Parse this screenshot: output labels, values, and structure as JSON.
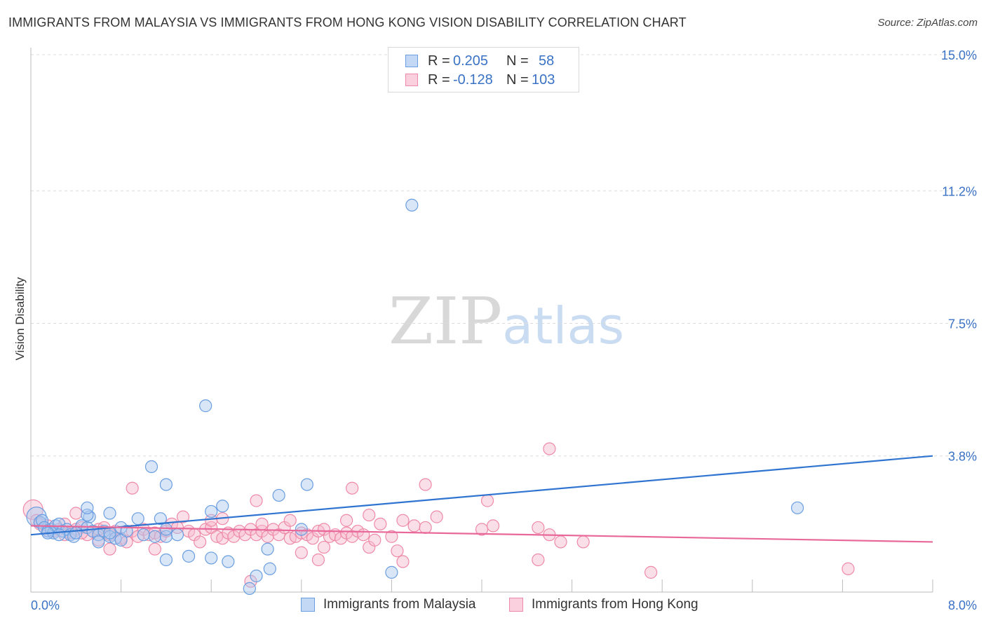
{
  "title": "IMMIGRANTS FROM MALAYSIA VS IMMIGRANTS FROM HONG KONG VISION DISABILITY CORRELATION CHART",
  "source": "Source: ZipAtlas.com",
  "watermark": {
    "zip": "ZIP",
    "atlas": "atlas"
  },
  "legend": {
    "series1": {
      "r_label": "R =",
      "r_value": "0.205",
      "n_label": "N =",
      "n_value": "58"
    },
    "series2": {
      "r_label": "R =",
      "r_value": "-0.128",
      "n_label": "N =",
      "n_value": "103"
    }
  },
  "bottom_legend": {
    "series1": "Immigrants from Malaysia",
    "series2": "Immigrants from Hong Kong"
  },
  "colors": {
    "blue_fill": "#a9c8f0",
    "blue_stroke": "#6a9ee0",
    "blue_line": "#2f74d0",
    "pink_fill": "#f7b8cc",
    "pink_stroke": "#ee8aa8",
    "pink_line": "#e8689a",
    "tick_text": "#3a72c4"
  },
  "chart_data": {
    "type": "scatter",
    "title": "IMMIGRANTS FROM MALAYSIA VS IMMIGRANTS FROM HONG KONG VISION DISABILITY CORRELATION CHART",
    "xlabel": "",
    "ylabel": "Vision Disability",
    "xlim": [
      0,
      8.0
    ],
    "ylim": [
      0,
      15.0
    ],
    "y_ticks": [
      {
        "value": 3.8,
        "label": "3.8%"
      },
      {
        "value": 7.5,
        "label": "7.5%"
      },
      {
        "value": 11.2,
        "label": "11.2%"
      },
      {
        "value": 15.0,
        "label": "15.0%"
      }
    ],
    "x_ticks": [
      {
        "value": 0.0,
        "label": "0.0%"
      },
      {
        "value": 8.0,
        "label": "8.0%"
      }
    ],
    "series": [
      {
        "name": "Immigrants from Malaysia",
        "color": "#a9c8f0",
        "trend": {
          "x": [
            0,
            8.0
          ],
          "y": [
            1.6,
            3.8
          ]
        },
        "points": [
          [
            0.05,
            2.1
          ],
          [
            0.08,
            1.95
          ],
          [
            0.1,
            2.0
          ],
          [
            0.12,
            1.8
          ],
          [
            0.15,
            1.7
          ],
          [
            0.18,
            1.75
          ],
          [
            0.2,
            1.65
          ],
          [
            0.22,
            1.85
          ],
          [
            0.25,
            1.9
          ],
          [
            0.28,
            1.7
          ],
          [
            0.32,
            1.75
          ],
          [
            0.35,
            1.6
          ],
          [
            0.38,
            1.55
          ],
          [
            0.45,
            1.85
          ],
          [
            0.5,
            1.8
          ],
          [
            0.55,
            1.7
          ],
          [
            0.6,
            1.6
          ],
          [
            0.65,
            1.7
          ],
          [
            0.7,
            1.55
          ],
          [
            0.75,
            1.5
          ],
          [
            0.8,
            1.8
          ],
          [
            0.85,
            1.7
          ],
          [
            0.15,
            1.65
          ],
          [
            0.25,
            1.6
          ],
          [
            0.4,
            1.65
          ],
          [
            0.52,
            2.1
          ],
          [
            0.6,
            1.4
          ],
          [
            0.7,
            1.65
          ],
          [
            0.8,
            1.45
          ],
          [
            1.0,
            1.6
          ],
          [
            1.1,
            1.55
          ],
          [
            1.2,
            1.55
          ],
          [
            1.3,
            1.6
          ],
          [
            0.5,
            2.15
          ],
          [
            0.7,
            2.2
          ],
          [
            0.95,
            2.05
          ],
          [
            1.15,
            2.05
          ],
          [
            1.6,
            2.25
          ],
          [
            1.7,
            2.4
          ],
          [
            2.4,
            1.75
          ],
          [
            0.5,
            2.35
          ],
          [
            1.07,
            3.5
          ],
          [
            1.2,
            3.0
          ],
          [
            1.55,
            5.2
          ],
          [
            2.2,
            2.7
          ],
          [
            2.45,
            3.0
          ],
          [
            3.38,
            10.8
          ],
          [
            1.2,
            0.9
          ],
          [
            1.4,
            1.0
          ],
          [
            1.6,
            0.95
          ],
          [
            1.75,
            0.85
          ],
          [
            2.1,
            1.2
          ],
          [
            2.12,
            0.65
          ],
          [
            2.0,
            0.45
          ],
          [
            1.94,
            0.1
          ],
          [
            3.2,
            0.55
          ],
          [
            6.8,
            2.35
          ],
          [
            1.2,
            1.75
          ]
        ]
      },
      {
        "name": "Immigrants from Hong Kong",
        "color": "#f7b8cc",
        "trend": {
          "x": [
            0,
            8.0
          ],
          "y": [
            1.85,
            1.4
          ]
        },
        "points": [
          [
            0.02,
            2.3
          ],
          [
            0.05,
            2.0
          ],
          [
            0.08,
            1.9
          ],
          [
            0.12,
            1.8
          ],
          [
            0.15,
            1.85
          ],
          [
            0.2,
            1.7
          ],
          [
            0.25,
            1.75
          ],
          [
            0.3,
            1.9
          ],
          [
            0.35,
            1.65
          ],
          [
            0.4,
            1.75
          ],
          [
            0.45,
            1.8
          ],
          [
            0.5,
            1.6
          ],
          [
            0.55,
            1.7
          ],
          [
            0.6,
            1.75
          ],
          [
            0.65,
            1.8
          ],
          [
            0.7,
            1.6
          ],
          [
            0.75,
            1.7
          ],
          [
            0.8,
            1.5
          ],
          [
            0.85,
            1.4
          ],
          [
            0.9,
            1.7
          ],
          [
            0.95,
            1.55
          ],
          [
            1.0,
            1.75
          ],
          [
            1.05,
            1.6
          ],
          [
            1.1,
            1.65
          ],
          [
            1.15,
            1.55
          ],
          [
            1.2,
            1.7
          ],
          [
            1.25,
            1.9
          ],
          [
            1.3,
            1.8
          ],
          [
            1.35,
            2.1
          ],
          [
            1.4,
            1.7
          ],
          [
            1.45,
            1.6
          ],
          [
            1.5,
            1.4
          ],
          [
            1.55,
            1.75
          ],
          [
            1.6,
            1.8
          ],
          [
            1.65,
            1.55
          ],
          [
            1.7,
            1.5
          ],
          [
            1.75,
            1.65
          ],
          [
            1.8,
            1.55
          ],
          [
            1.85,
            1.7
          ],
          [
            1.9,
            1.6
          ],
          [
            1.95,
            1.75
          ],
          [
            2.0,
            1.6
          ],
          [
            2.05,
            1.7
          ],
          [
            2.1,
            1.55
          ],
          [
            2.15,
            1.75
          ],
          [
            2.2,
            1.6
          ],
          [
            2.25,
            1.8
          ],
          [
            2.3,
            1.5
          ],
          [
            2.35,
            1.55
          ],
          [
            2.4,
            1.65
          ],
          [
            2.45,
            1.6
          ],
          [
            2.5,
            1.5
          ],
          [
            2.55,
            1.7
          ],
          [
            2.6,
            1.75
          ],
          [
            2.65,
            1.55
          ],
          [
            2.7,
            1.6
          ],
          [
            2.75,
            1.5
          ],
          [
            2.8,
            1.65
          ],
          [
            2.85,
            1.55
          ],
          [
            2.9,
            1.7
          ],
          [
            2.95,
            1.6
          ],
          [
            3.0,
            1.25
          ],
          [
            3.05,
            1.45
          ],
          [
            3.1,
            1.9
          ],
          [
            3.2,
            1.55
          ],
          [
            3.3,
            2.0
          ],
          [
            3.4,
            1.85
          ],
          [
            3.5,
            1.8
          ],
          [
            3.6,
            2.1
          ],
          [
            4.0,
            1.75
          ],
          [
            4.1,
            1.85
          ],
          [
            4.5,
            1.8
          ],
          [
            4.6,
            1.6
          ],
          [
            4.7,
            1.4
          ],
          [
            4.9,
            1.4
          ],
          [
            0.4,
            2.2
          ],
          [
            0.6,
            1.45
          ],
          [
            0.7,
            1.2
          ],
          [
            0.9,
            2.9
          ],
          [
            1.1,
            1.2
          ],
          [
            1.6,
            2.0
          ],
          [
            1.7,
            2.05
          ],
          [
            2.0,
            2.55
          ],
          [
            2.3,
            2.0
          ],
          [
            2.8,
            2.0
          ],
          [
            3.0,
            2.15
          ],
          [
            2.85,
            2.9
          ],
          [
            3.5,
            3.0
          ],
          [
            4.05,
            2.55
          ],
          [
            4.6,
            4.0
          ],
          [
            2.6,
            1.25
          ],
          [
            2.55,
            0.9
          ],
          [
            3.25,
            1.15
          ],
          [
            3.3,
            0.85
          ],
          [
            4.5,
            0.9
          ],
          [
            5.5,
            0.55
          ],
          [
            7.25,
            0.65
          ],
          [
            1.95,
            0.3
          ],
          [
            2.4,
            1.1
          ],
          [
            0.3,
            1.6
          ],
          [
            0.15,
            1.7
          ],
          [
            0.45,
            1.65
          ],
          [
            2.05,
            1.9
          ]
        ]
      }
    ]
  }
}
